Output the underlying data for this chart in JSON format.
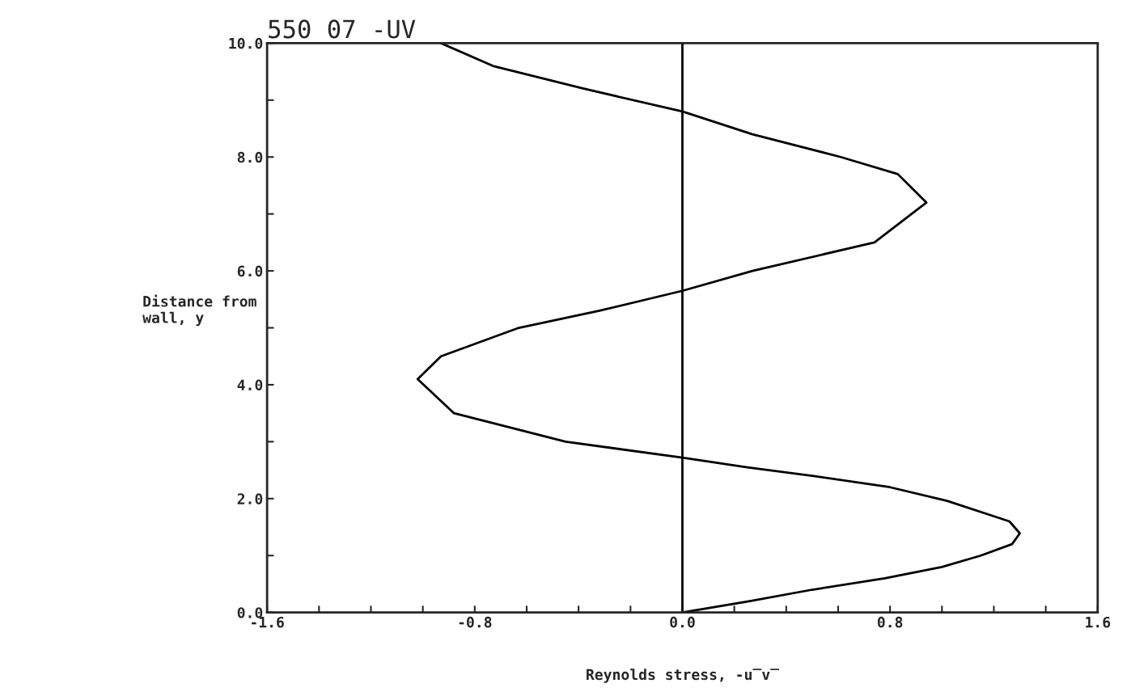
{
  "chart_data": {
    "type": "line",
    "title": "550 07 -UV",
    "xlabel": "Reynolds stress, -u̅v̅",
    "ylabel": "Distance from\nwall, y",
    "series": [
      {
        "color": "#000000",
        "x": [
          0,
          0.26,
          0.5,
          0.78,
          1.0,
          1.15,
          1.27,
          1.3,
          1.26,
          1.02,
          0.8,
          0.5,
          0.25,
          0,
          -0.45,
          -0.88,
          -1.02,
          -0.93,
          -0.63,
          -0.32,
          0,
          0.27,
          0.74,
          0.94,
          0.83,
          0.61,
          0.27,
          0,
          -0.38,
          -0.73,
          -0.93
        ],
        "values": [
          0,
          0.2,
          0.4,
          0.6,
          0.8,
          1.0,
          1.2,
          1.39,
          1.6,
          1.96,
          2.2,
          2.4,
          2.55,
          2.72,
          3.0,
          3.5,
          4.1,
          4.5,
          5.0,
          5.3,
          5.65,
          6.0,
          6.5,
          7.2,
          7.7,
          8.0,
          8.4,
          8.8,
          9.2,
          9.6,
          10.0
        ]
      }
    ],
    "xlim": [
      -1.6,
      1.6
    ],
    "ylim": [
      0,
      10
    ],
    "xticks": [
      {
        "value": -1.6,
        "label": "-1.6"
      },
      {
        "value": -1.4,
        "label": null
      },
      {
        "value": -1.2,
        "label": null
      },
      {
        "value": -1.0,
        "label": null
      },
      {
        "value": -0.8,
        "label": "-0.8"
      },
      {
        "value": -0.6,
        "label": null
      },
      {
        "value": -0.4,
        "label": null
      },
      {
        "value": -0.2,
        "label": null
      },
      {
        "value": 0,
        "label": "0.0"
      },
      {
        "value": 0.2,
        "label": null
      },
      {
        "value": 0.4,
        "label": null
      },
      {
        "value": 0.6,
        "label": null
      },
      {
        "value": 0.8,
        "label": "0.8"
      },
      {
        "value": 1.0,
        "label": null
      },
      {
        "value": 1.2,
        "label": null
      },
      {
        "value": 1.4,
        "label": null
      },
      {
        "value": 1.6,
        "label": "1.6"
      }
    ],
    "yticks": [
      {
        "value": 0,
        "label": "0.0"
      },
      {
        "value": 1,
        "label": null
      },
      {
        "value": 2,
        "label": "2.0"
      },
      {
        "value": 3,
        "label": null
      },
      {
        "value": 4,
        "label": "4.0"
      },
      {
        "value": 5,
        "label": null
      },
      {
        "value": 6,
        "label": "6.0"
      },
      {
        "value": 7,
        "label": null
      },
      {
        "value": 8,
        "label": "8.0"
      },
      {
        "value": 9,
        "label": null
      },
      {
        "value": 10,
        "label": "10.0"
      }
    ],
    "ref_lines": [
      {
        "axis": "x",
        "value": 0,
        "color": "#000000"
      }
    ],
    "grid": false,
    "legend": false,
    "marker": "none",
    "line_style": "solid"
  }
}
